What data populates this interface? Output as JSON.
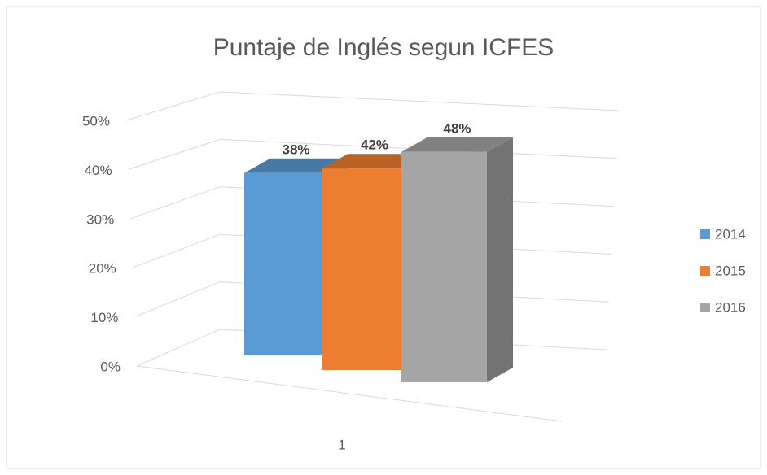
{
  "chart_data": {
    "type": "bar3d",
    "title": "Puntaje de Inglés segun ICFES",
    "categories": [
      "1"
    ],
    "series": [
      {
        "name": "2014",
        "color": "#5b9bd5",
        "values": [
          38
        ],
        "value_labels": [
          "38%"
        ]
      },
      {
        "name": "2015",
        "color": "#ed7d31",
        "values": [
          42
        ],
        "value_labels": [
          "42%"
        ]
      },
      {
        "name": "2016",
        "color": "#a5a5a5",
        "values": [
          48
        ],
        "value_labels": [
          "48%"
        ]
      }
    ],
    "ylim": [
      0,
      50
    ],
    "yticks": [
      {
        "value": 0,
        "label": "0%"
      },
      {
        "value": 10,
        "label": "10%"
      },
      {
        "value": 20,
        "label": "20%"
      },
      {
        "value": 30,
        "label": "30%"
      },
      {
        "value": 40,
        "label": "40%"
      },
      {
        "value": 50,
        "label": "50%"
      }
    ],
    "grid": true,
    "legend": "right"
  }
}
